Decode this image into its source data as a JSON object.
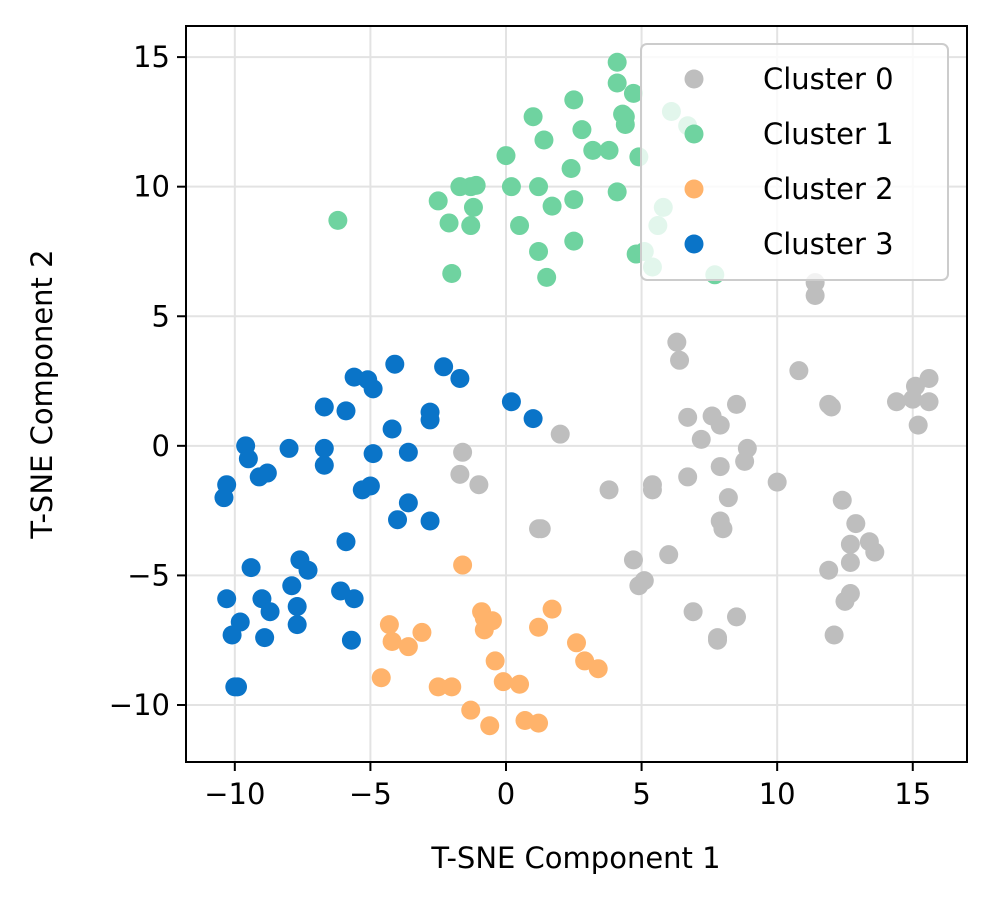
{
  "chart_data": {
    "type": "scatter",
    "xlabel": "T-SNE Component 1",
    "ylabel": "T-SNE Component 2",
    "xlim": [
      -11.8,
      17.0
    ],
    "ylim": [
      -12.2,
      16.2
    ],
    "xticks": [
      -10,
      -5,
      0,
      5,
      10,
      15
    ],
    "yticks": [
      -10,
      -5,
      0,
      5,
      10,
      15
    ],
    "xtick_labels": [
      "−10",
      "−5",
      "0",
      "5",
      "10",
      "15"
    ],
    "ytick_labels": [
      "−10",
      "−5",
      "0",
      "5",
      "10",
      "15"
    ],
    "grid": true,
    "legend_position": "top-right",
    "series": [
      {
        "name": "Cluster 0",
        "color": "#bebebe",
        "points": [
          [
            -1.6,
            -0.25
          ],
          [
            -1.7,
            -1.1
          ],
          [
            -1.0,
            -1.5
          ],
          [
            2.0,
            0.45
          ],
          [
            1.3,
            -3.2
          ],
          [
            1.2,
            -3.2
          ],
          [
            3.8,
            -1.7
          ],
          [
            5.4,
            -1.5
          ],
          [
            5.4,
            -1.7
          ],
          [
            4.7,
            -4.4
          ],
          [
            4.9,
            -5.4
          ],
          [
            5.1,
            -5.2
          ],
          [
            6.0,
            -4.2
          ],
          [
            6.3,
            4.0
          ],
          [
            6.4,
            3.3
          ],
          [
            6.7,
            1.1
          ],
          [
            6.7,
            -1.2
          ],
          [
            7.2,
            0.25
          ],
          [
            7.6,
            1.15
          ],
          [
            7.9,
            0.8
          ],
          [
            7.9,
            -0.8
          ],
          [
            7.9,
            -2.9
          ],
          [
            8.0,
            -3.2
          ],
          [
            8.2,
            -2.0
          ],
          [
            8.5,
            1.6
          ],
          [
            8.8,
            -0.6
          ],
          [
            8.9,
            -0.1
          ],
          [
            6.9,
            -6.4
          ],
          [
            7.8,
            -7.4
          ],
          [
            7.8,
            -7.5
          ],
          [
            8.5,
            -6.6
          ],
          [
            10.0,
            -1.4
          ],
          [
            10.8,
            2.9
          ],
          [
            11.4,
            6.3
          ],
          [
            11.4,
            5.8
          ],
          [
            11.9,
            1.6
          ],
          [
            12.0,
            1.5
          ],
          [
            12.4,
            -2.1
          ],
          [
            11.9,
            -4.8
          ],
          [
            12.1,
            -7.3
          ],
          [
            12.5,
            -6.0
          ],
          [
            12.7,
            -5.7
          ],
          [
            12.7,
            -3.8
          ],
          [
            12.7,
            -4.5
          ],
          [
            12.9,
            -3.0
          ],
          [
            13.4,
            -3.7
          ],
          [
            13.6,
            -4.1
          ],
          [
            14.4,
            1.7
          ],
          [
            15.0,
            1.8
          ],
          [
            15.1,
            2.3
          ],
          [
            15.2,
            0.8
          ],
          [
            15.6,
            2.6
          ],
          [
            15.6,
            1.7
          ]
        ]
      },
      {
        "name": "Cluster 1",
        "color": "#6fd3a0",
        "points": [
          [
            -6.2,
            8.7
          ],
          [
            -2.5,
            9.45
          ],
          [
            -2.1,
            8.6
          ],
          [
            -2.0,
            6.65
          ],
          [
            -1.7,
            10.0
          ],
          [
            -1.3,
            10.0
          ],
          [
            -1.3,
            8.5
          ],
          [
            -1.2,
            9.2
          ],
          [
            -1.1,
            10.05
          ],
          [
            0.0,
            11.2
          ],
          [
            0.2,
            10.0
          ],
          [
            0.5,
            8.5
          ],
          [
            1.0,
            12.7
          ],
          [
            1.2,
            10.0
          ],
          [
            1.2,
            7.5
          ],
          [
            1.4,
            11.8
          ],
          [
            1.5,
            6.5
          ],
          [
            1.7,
            9.25
          ],
          [
            2.4,
            10.7
          ],
          [
            2.5,
            13.35
          ],
          [
            2.5,
            9.5
          ],
          [
            2.5,
            7.9
          ],
          [
            2.8,
            12.2
          ],
          [
            3.2,
            11.4
          ],
          [
            3.8,
            11.4
          ],
          [
            4.1,
            9.8
          ],
          [
            4.1,
            14.0
          ],
          [
            4.1,
            14.8
          ],
          [
            4.3,
            12.8
          ],
          [
            4.4,
            12.4
          ],
          [
            4.4,
            12.7
          ],
          [
            4.7,
            13.6
          ],
          [
            4.9,
            11.15
          ],
          [
            4.8,
            7.4
          ],
          [
            5.1,
            7.5
          ],
          [
            5.4,
            6.9
          ],
          [
            5.6,
            8.5
          ],
          [
            5.8,
            9.2
          ],
          [
            6.1,
            12.9
          ],
          [
            6.7,
            12.35
          ],
          [
            7.7,
            6.6
          ]
        ]
      },
      {
        "name": "Cluster 2",
        "color": "#ffb36b",
        "points": [
          [
            -1.6,
            -4.6
          ],
          [
            -4.6,
            -8.95
          ],
          [
            -4.3,
            -6.9
          ],
          [
            -4.2,
            -7.55
          ],
          [
            -3.6,
            -7.75
          ],
          [
            -3.1,
            -7.2
          ],
          [
            -2.5,
            -9.3
          ],
          [
            -2.0,
            -9.3
          ],
          [
            -1.3,
            -10.2
          ],
          [
            -0.9,
            -6.4
          ],
          [
            -0.8,
            -6.65
          ],
          [
            -0.8,
            -7.1
          ],
          [
            -0.5,
            -6.75
          ],
          [
            -0.6,
            -10.8
          ],
          [
            -0.4,
            -8.3
          ],
          [
            -0.1,
            -9.1
          ],
          [
            0.5,
            -9.2
          ],
          [
            0.7,
            -10.6
          ],
          [
            1.2,
            -10.7
          ],
          [
            1.2,
            -7.0
          ],
          [
            1.7,
            -6.3
          ],
          [
            2.6,
            -7.6
          ],
          [
            2.9,
            -8.3
          ],
          [
            3.4,
            -8.6
          ]
        ]
      },
      {
        "name": "Cluster 3",
        "color": "#0a74c8",
        "points": [
          [
            -10.4,
            -2.0
          ],
          [
            -10.3,
            -1.5
          ],
          [
            -9.6,
            0.0
          ],
          [
            -9.5,
            -0.5
          ],
          [
            -9.1,
            -1.2
          ],
          [
            -8.8,
            -1.05
          ],
          [
            -8.0,
            -0.1
          ],
          [
            -6.7,
            -0.75
          ],
          [
            -6.7,
            -0.1
          ],
          [
            -6.7,
            1.5
          ],
          [
            -5.9,
            1.35
          ],
          [
            -5.6,
            2.65
          ],
          [
            -5.1,
            2.55
          ],
          [
            -4.9,
            2.2
          ],
          [
            -4.1,
            3.15
          ],
          [
            -4.9,
            -0.3
          ],
          [
            -5.3,
            -1.7
          ],
          [
            -5.0,
            -1.55
          ],
          [
            -4.2,
            0.65
          ],
          [
            -4.0,
            -2.85
          ],
          [
            -3.6,
            -2.2
          ],
          [
            -3.6,
            -0.25
          ],
          [
            -2.8,
            1.3
          ],
          [
            -2.8,
            1.0
          ],
          [
            -2.8,
            -2.9
          ],
          [
            -2.3,
            3.05
          ],
          [
            -1.7,
            2.6
          ],
          [
            0.2,
            1.7
          ],
          [
            1.0,
            1.05
          ],
          [
            -9.4,
            -4.7
          ],
          [
            -7.6,
            -4.4
          ],
          [
            -7.3,
            -4.8
          ],
          [
            -7.9,
            -5.4
          ],
          [
            -9.0,
            -5.9
          ],
          [
            -8.7,
            -6.4
          ],
          [
            -8.9,
            -7.4
          ],
          [
            -10.3,
            -5.9
          ],
          [
            -9.8,
            -6.8
          ],
          [
            -10.1,
            -7.3
          ],
          [
            -10.0,
            -9.3
          ],
          [
            -9.9,
            -9.3
          ],
          [
            -7.7,
            -6.2
          ],
          [
            -7.7,
            -6.9
          ],
          [
            -5.9,
            -3.7
          ],
          [
            -6.1,
            -5.6
          ],
          [
            -5.6,
            -5.9
          ],
          [
            -5.7,
            -7.5
          ]
        ]
      }
    ]
  }
}
